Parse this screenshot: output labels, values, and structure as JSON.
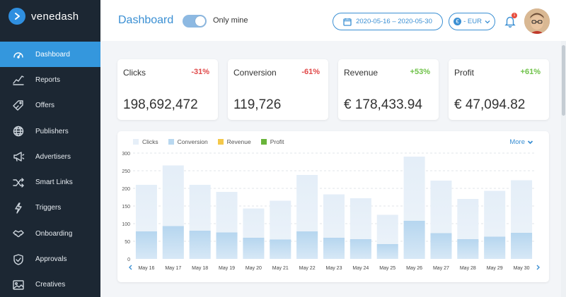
{
  "brand": {
    "name": "venedash"
  },
  "sidebar": {
    "items": [
      {
        "label": "Dashboard",
        "icon": "speedometer-icon",
        "active": true
      },
      {
        "label": "Reports",
        "icon": "line-chart-icon"
      },
      {
        "label": "Offers",
        "icon": "tag-icon"
      },
      {
        "label": "Publishers",
        "icon": "globe-icon"
      },
      {
        "label": "Advertisers",
        "icon": "megaphone-icon"
      },
      {
        "label": "Smart Links",
        "icon": "shuffle-icon"
      },
      {
        "label": "Triggers",
        "icon": "lightning-icon"
      },
      {
        "label": "Onboarding",
        "icon": "handshake-icon"
      },
      {
        "label": "Approvals",
        "icon": "shield-check-icon"
      },
      {
        "label": "Creatives",
        "icon": "image-icon"
      }
    ]
  },
  "header": {
    "title": "Dashboard",
    "toggle_label": "Only mine",
    "toggle_on": true,
    "date_range": "2020-05-16 – 2020-05-30",
    "currency_symbol": "€",
    "currency_label": "- EUR",
    "notification_count": "1"
  },
  "cards": [
    {
      "label": "Clicks",
      "change": "-31%",
      "trend": "neg",
      "value": "198,692,472"
    },
    {
      "label": "Conversion",
      "change": "-61%",
      "trend": "neg",
      "value": "119,726"
    },
    {
      "label": "Revenue",
      "change": "+53%",
      "trend": "pos",
      "value": "€ 178,433.94"
    },
    {
      "label": "Profit",
      "change": "+61%",
      "trend": "pos",
      "value": "€ 47,094.82"
    }
  ],
  "chart": {
    "more_label": "More",
    "legend": [
      {
        "label": "Clicks",
        "color": "#e6eff8"
      },
      {
        "label": "Conversion",
        "color": "#b9d8f0"
      },
      {
        "label": "Revenue",
        "color": "#f4c84a"
      },
      {
        "label": "Profit",
        "color": "#69b43a"
      }
    ]
  },
  "chart_data": {
    "type": "bar",
    "categories": [
      "May 16",
      "May 17",
      "May 18",
      "May 19",
      "May 20",
      "May 21",
      "May 22",
      "May 23",
      "May 24",
      "May 25",
      "May 26",
      "May 27",
      "May 28",
      "May 29",
      "May 30"
    ],
    "series": [
      {
        "name": "Clicks",
        "values": [
          210,
          265,
          210,
          190,
          143,
          165,
          238,
          183,
          172,
          125,
          290,
          222,
          170,
          193,
          223
        ]
      },
      {
        "name": "Conversion",
        "values": [
          78,
          93,
          80,
          75,
          60,
          55,
          78,
          60,
          56,
          42,
          108,
          73,
          56,
          63,
          74
        ]
      }
    ],
    "yticks": [
      0,
      50,
      100,
      150,
      200,
      250,
      300
    ],
    "ylim": [
      0,
      300
    ],
    "grid": true,
    "legend_position": "top-left"
  }
}
